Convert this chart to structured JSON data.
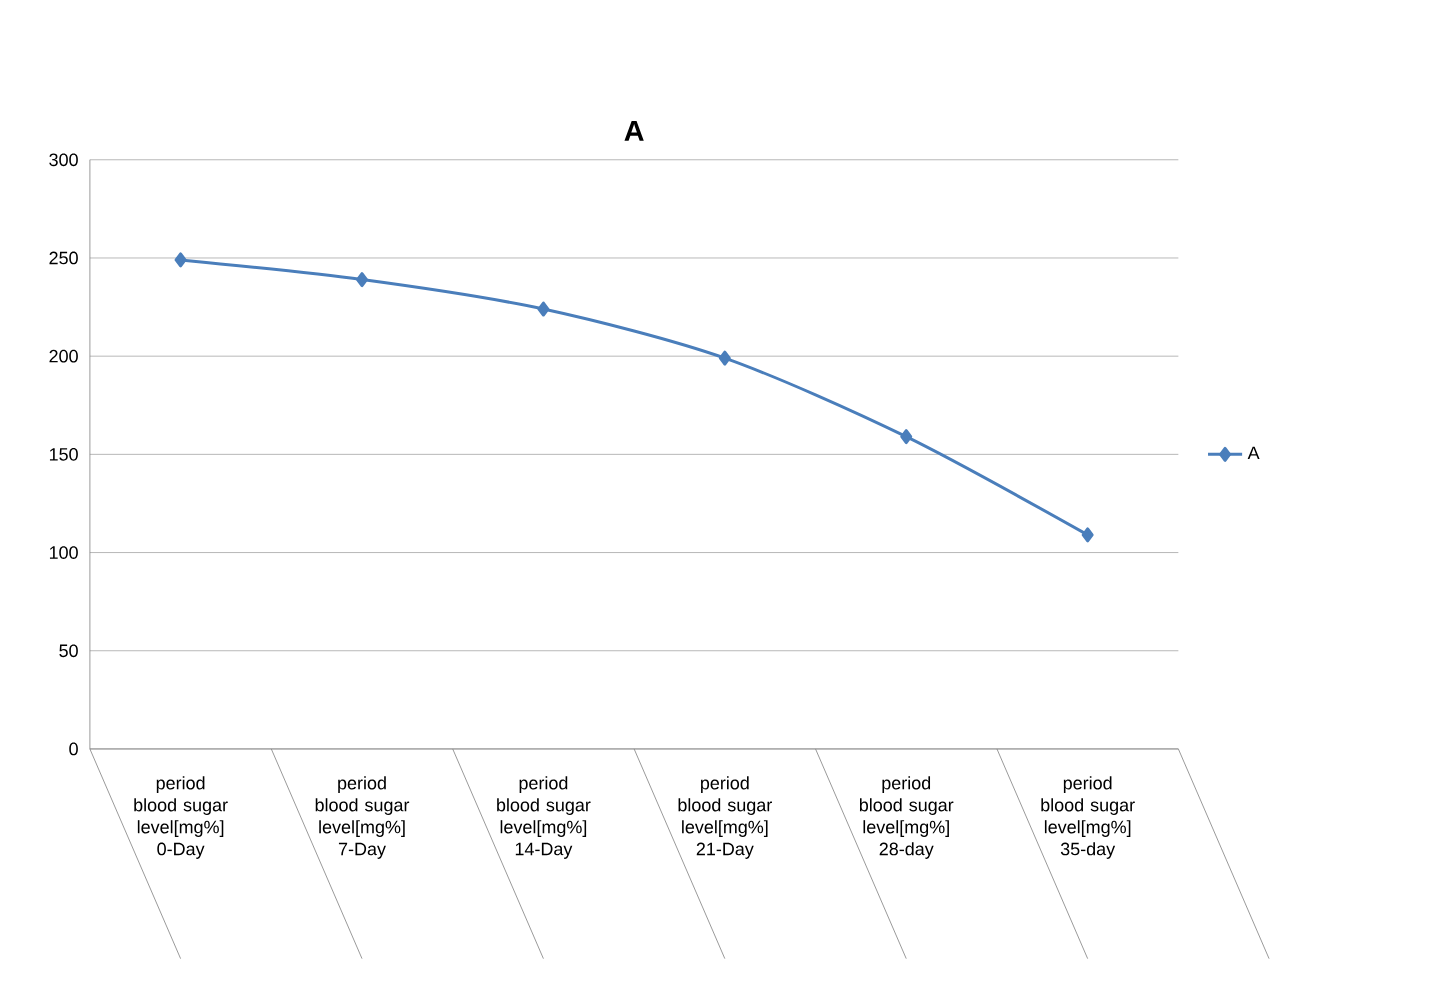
{
  "chart_data": {
    "type": "line",
    "title": "A",
    "categories": [
      "period blood sugar level[mg%] 0-Day",
      "period blood sugar level[mg%] 7-Day",
      "period blood sugar level[mg%] 14-Day",
      "period blood sugar level[mg%] 21-Day",
      "period blood sugar level[mg%] 28-day",
      "period blood sugar level[mg%] 35-day"
    ],
    "series": [
      {
        "name": "A",
        "color": "#4a7ebb",
        "values": [
          249,
          239,
          224,
          199,
          159,
          109
        ]
      }
    ],
    "ylim": [
      0,
      300
    ],
    "yticks": [
      0,
      50,
      100,
      150,
      200,
      250,
      300
    ],
    "grid": "y",
    "legend": "right",
    "marker": "diamond",
    "line_style": "solid"
  }
}
